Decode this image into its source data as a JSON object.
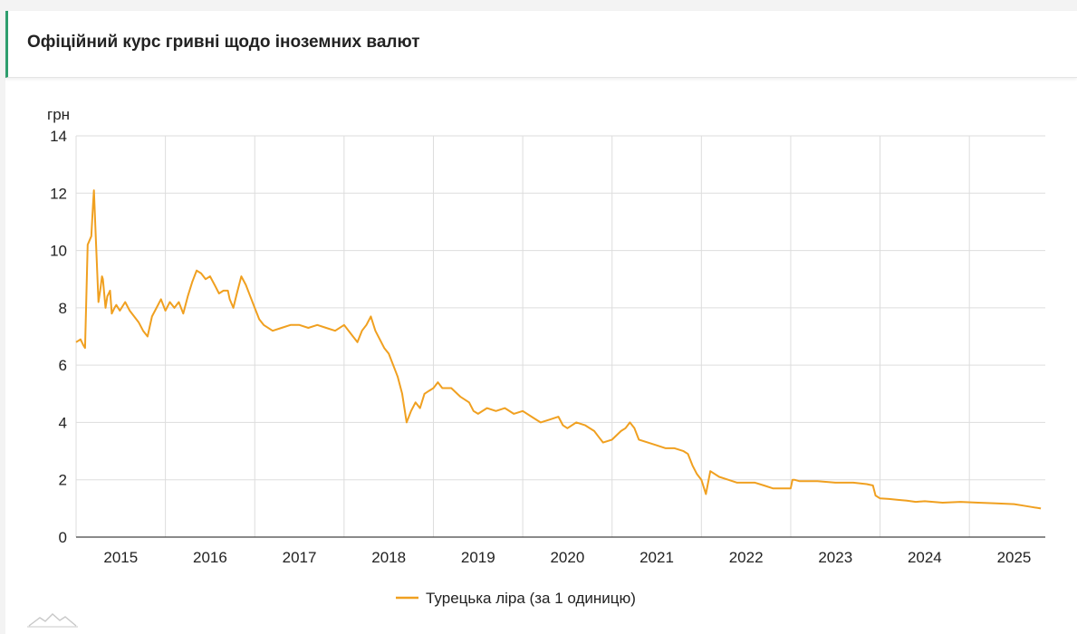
{
  "header": {
    "title": "Офіційний курс гривні щодо іноземних валют"
  },
  "colors": {
    "accent": "#2e9e6e",
    "series": "#f0a020",
    "grid": "#dddddd",
    "watermark": "#c8c8c8"
  },
  "watermark_icon": "mountain-logo-icon",
  "chart_data": {
    "type": "line",
    "title": "",
    "ylabel": "грн",
    "xlabel": "",
    "ylim": [
      0,
      14
    ],
    "xlim": [
      2014.5,
      2025.35
    ],
    "yticks": [
      0,
      2,
      4,
      6,
      8,
      10,
      12,
      14
    ],
    "xticks": [
      {
        "label": "2015",
        "value": 2015.0
      },
      {
        "label": "2016",
        "value": 2016.0
      },
      {
        "label": "2017",
        "value": 2017.0
      },
      {
        "label": "2018",
        "value": 2018.0
      },
      {
        "label": "2019",
        "value": 2019.0
      },
      {
        "label": "2020",
        "value": 2020.0
      },
      {
        "label": "2021",
        "value": 2021.0
      },
      {
        "label": "2022",
        "value": 2022.0
      },
      {
        "label": "2023",
        "value": 2023.0
      },
      {
        "label": "2024",
        "value": 2024.0
      },
      {
        "label": "2025",
        "value": 2025.0
      }
    ],
    "grid": true,
    "legend": "bottom-center",
    "series": [
      {
        "name": "Турецька ліра (за 1 одиницю)",
        "color": "#f0a020",
        "x": [
          2014.5,
          2014.55,
          2014.58,
          2014.6,
          2014.63,
          2014.67,
          2014.69,
          2014.7,
          2014.72,
          2014.75,
          2014.77,
          2014.79,
          2014.8,
          2014.83,
          2014.85,
          2014.88,
          2014.9,
          2014.93,
          2014.95,
          2014.99,
          2015.05,
          2015.1,
          2015.15,
          2015.2,
          2015.25,
          2015.3,
          2015.35,
          2015.4,
          2015.45,
          2015.5,
          2015.55,
          2015.6,
          2015.65,
          2015.7,
          2015.75,
          2015.8,
          2015.85,
          2015.9,
          2015.95,
          2016.0,
          2016.05,
          2016.1,
          2016.15,
          2016.2,
          2016.22,
          2016.26,
          2016.3,
          2016.35,
          2016.4,
          2016.45,
          2016.5,
          2016.55,
          2016.6,
          2016.7,
          2016.8,
          2016.9,
          2017.0,
          2017.1,
          2017.2,
          2017.3,
          2017.4,
          2017.5,
          2017.6,
          2017.65,
          2017.7,
          2017.75,
          2017.8,
          2017.85,
          2017.9,
          2017.95,
          2018.0,
          2018.05,
          2018.1,
          2018.15,
          2018.2,
          2018.25,
          2018.3,
          2018.35,
          2018.4,
          2018.45,
          2018.5,
          2018.55,
          2018.6,
          2018.7,
          2018.8,
          2018.9,
          2018.95,
          2019.0,
          2019.1,
          2019.2,
          2019.3,
          2019.4,
          2019.5,
          2019.6,
          2019.7,
          2019.8,
          2019.9,
          2019.95,
          2020.0,
          2020.1,
          2020.2,
          2020.3,
          2020.35,
          2020.4,
          2020.5,
          2020.6,
          2020.65,
          2020.7,
          2020.75,
          2020.8,
          2020.9,
          2021.0,
          2021.1,
          2021.2,
          2021.3,
          2021.35,
          2021.4,
          2021.45,
          2021.5,
          2021.55,
          2021.6,
          2021.7,
          2021.8,
          2021.9,
          2022.0,
          2022.1,
          2022.2,
          2022.3,
          2022.4,
          2022.5,
          2022.52,
          2022.54,
          2022.6,
          2022.8,
          2023.0,
          2023.2,
          2023.35,
          2023.42,
          2023.45,
          2023.5,
          2023.6,
          2023.7,
          2023.8,
          2023.9,
          2024.0,
          2024.2,
          2024.4,
          2024.6,
          2024.8,
          2025.0,
          2025.1,
          2025.2,
          2025.3
        ],
        "values": [
          6.8,
          6.9,
          6.7,
          6.6,
          10.2,
          10.5,
          11.6,
          12.1,
          10.5,
          8.2,
          8.6,
          9.1,
          9.0,
          8.0,
          8.4,
          8.6,
          7.8,
          8.0,
          8.1,
          7.9,
          8.2,
          7.9,
          7.7,
          7.5,
          7.2,
          7.0,
          7.7,
          8.0,
          8.3,
          7.9,
          8.2,
          8.0,
          8.2,
          7.8,
          8.4,
          8.9,
          9.3,
          9.2,
          9.0,
          9.1,
          8.8,
          8.5,
          8.6,
          8.6,
          8.3,
          8.0,
          8.5,
          9.1,
          8.8,
          8.4,
          8.0,
          7.6,
          7.4,
          7.2,
          7.3,
          7.4,
          7.4,
          7.3,
          7.4,
          7.3,
          7.2,
          7.4,
          7.0,
          6.8,
          7.2,
          7.4,
          7.7,
          7.2,
          6.9,
          6.6,
          6.4,
          6.0,
          5.6,
          5.0,
          4.0,
          4.4,
          4.7,
          4.5,
          5.0,
          5.1,
          5.2,
          5.4,
          5.2,
          5.2,
          4.9,
          4.7,
          4.4,
          4.3,
          4.5,
          4.4,
          4.5,
          4.3,
          4.4,
          4.2,
          4.0,
          4.1,
          4.2,
          3.9,
          3.8,
          4.0,
          3.9,
          3.7,
          3.5,
          3.3,
          3.4,
          3.7,
          3.8,
          4.0,
          3.8,
          3.4,
          3.3,
          3.2,
          3.1,
          3.1,
          3.0,
          2.9,
          2.5,
          2.2,
          2.0,
          1.5,
          2.3,
          2.1,
          2.0,
          1.9,
          1.9,
          1.9,
          1.8,
          1.7,
          1.7,
          1.7,
          2.0,
          2.0,
          1.95,
          1.95,
          1.9,
          1.9,
          1.85,
          1.8,
          1.45,
          1.35,
          1.33,
          1.3,
          1.27,
          1.23,
          1.25,
          1.2,
          1.23,
          1.2,
          1.18,
          1.15,
          1.1,
          1.05,
          1.0
        ]
      }
    ]
  }
}
